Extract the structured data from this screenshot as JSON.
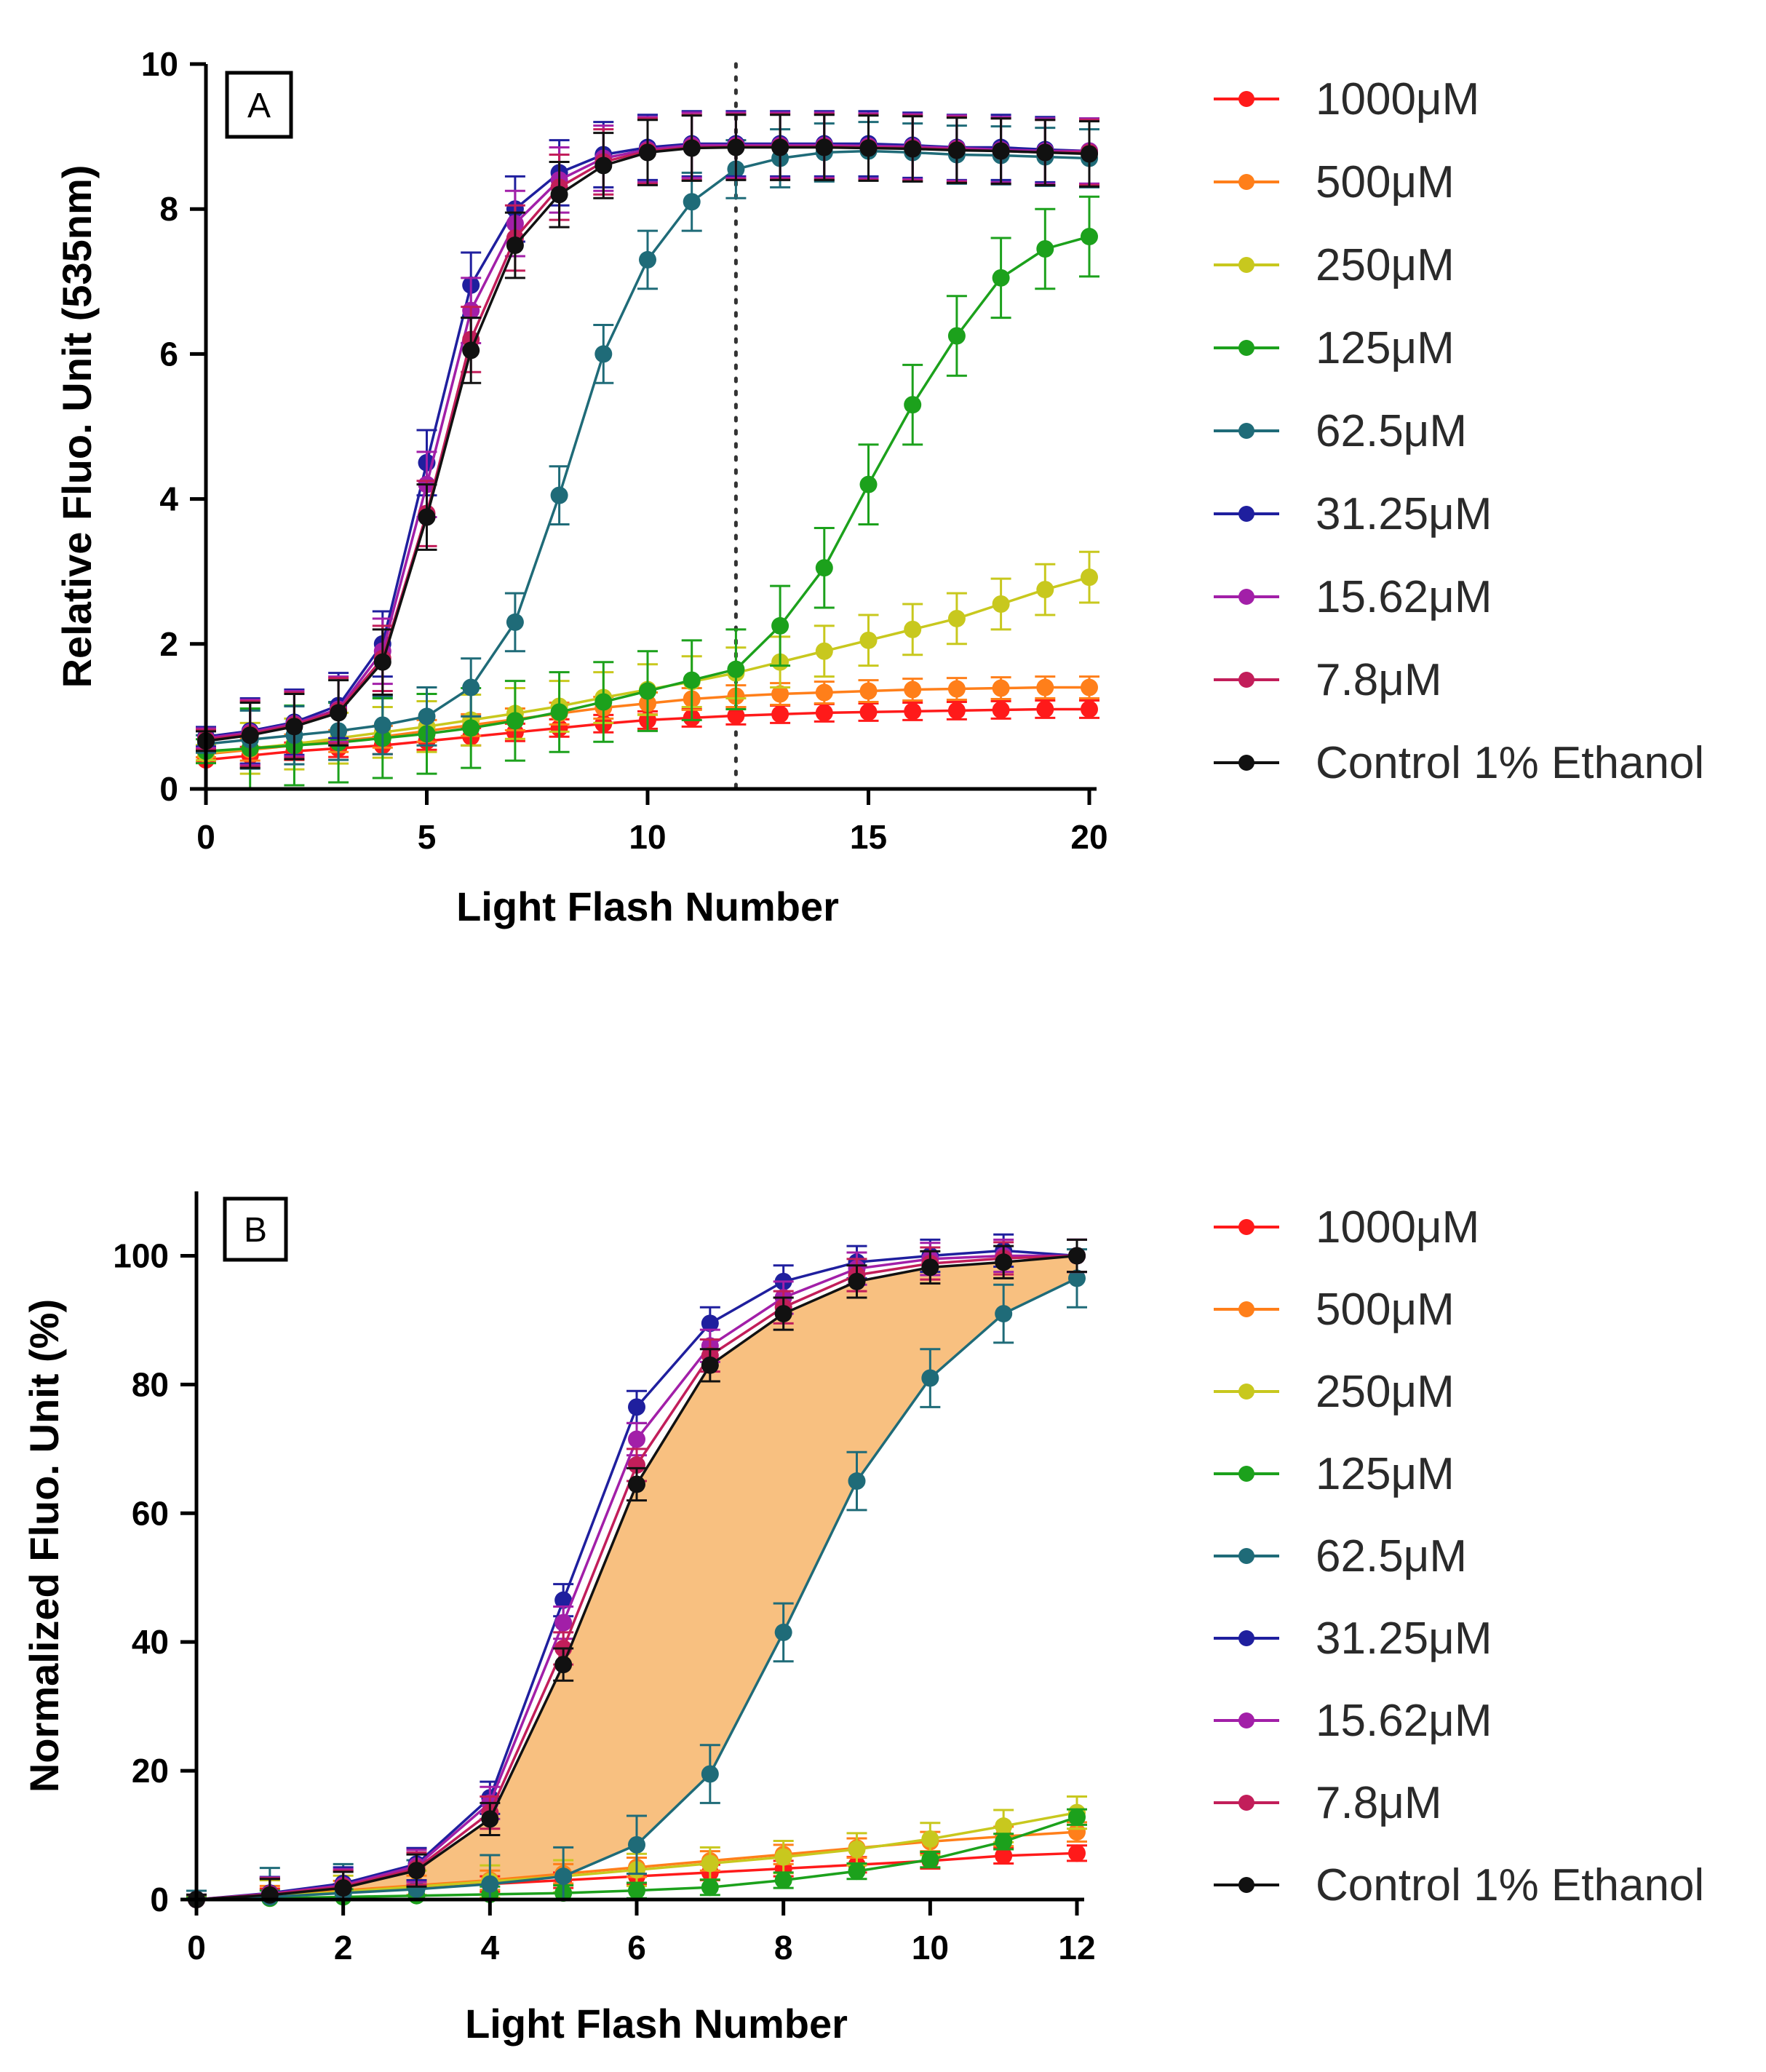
{
  "chart_data": [
    {
      "type": "line",
      "panel_label": "A",
      "xlabel": "Light Flash Number",
      "ylabel": "Relative Fluo. Unit (535nm)",
      "xlim": [
        0,
        20
      ],
      "ylim": [
        0,
        10
      ],
      "xticks": [
        0,
        5,
        10,
        15,
        20
      ],
      "yticks": [
        0,
        2,
        4,
        6,
        8,
        10
      ],
      "vline_x": 12,
      "vline_style": "dotted",
      "legend_position": "right",
      "x": [
        0,
        1,
        2,
        3,
        4,
        5,
        6,
        7,
        8,
        9,
        10,
        11,
        12,
        13,
        14,
        15,
        16,
        17,
        18,
        19,
        20
      ],
      "series": [
        {
          "name": "1000μM",
          "color": "#ff1a1a",
          "values": [
            0.4,
            0.46,
            0.52,
            0.56,
            0.6,
            0.66,
            0.72,
            0.78,
            0.84,
            0.9,
            0.95,
            0.98,
            1.01,
            1.03,
            1.05,
            1.06,
            1.07,
            1.08,
            1.09,
            1.1,
            1.1
          ],
          "err": 0.12
        },
        {
          "name": "500μM",
          "color": "#ff7f1a",
          "values": [
            0.48,
            0.54,
            0.6,
            0.66,
            0.72,
            0.8,
            0.88,
            0.96,
            1.04,
            1.12,
            1.18,
            1.24,
            1.28,
            1.31,
            1.33,
            1.35,
            1.37,
            1.38,
            1.39,
            1.4,
            1.4
          ],
          "err": 0.15
        },
        {
          "name": "250μM",
          "color": "#c8c81e",
          "values": [
            0.5,
            0.56,
            0.62,
            0.7,
            0.78,
            0.86,
            0.95,
            1.04,
            1.14,
            1.26,
            1.37,
            1.48,
            1.6,
            1.75,
            1.9,
            2.05,
            2.2,
            2.35,
            2.55,
            2.75,
            2.92
          ],
          "err": 0.35
        },
        {
          "name": "125μM",
          "color": "#1ca11c",
          "values": [
            0.52,
            0.56,
            0.6,
            0.64,
            0.7,
            0.76,
            0.84,
            0.94,
            1.06,
            1.2,
            1.35,
            1.5,
            1.65,
            2.25,
            3.05,
            4.2,
            5.3,
            6.25,
            7.05,
            7.45,
            7.62
          ],
          "err": 0.55
        },
        {
          "name": "62.5μM",
          "color": "#1f6b78",
          "values": [
            0.62,
            0.68,
            0.74,
            0.8,
            0.88,
            1.0,
            1.4,
            2.3,
            4.05,
            6.0,
            7.3,
            8.1,
            8.55,
            8.7,
            8.78,
            8.8,
            8.78,
            8.75,
            8.74,
            8.72,
            8.7
          ],
          "err": 0.4
        },
        {
          "name": "31.25μM",
          "color": "#1f1f9e",
          "values": [
            0.72,
            0.8,
            0.92,
            1.15,
            2.0,
            4.5,
            6.95,
            8.0,
            8.5,
            8.75,
            8.85,
            8.9,
            8.9,
            8.9,
            8.9,
            8.9,
            8.88,
            8.85,
            8.85,
            8.82,
            8.8
          ],
          "err": 0.45
        },
        {
          "name": "15.62μM",
          "color": "#a21fa8",
          "values": [
            0.7,
            0.78,
            0.9,
            1.1,
            1.9,
            4.2,
            6.6,
            7.8,
            8.4,
            8.7,
            8.82,
            8.88,
            8.88,
            8.88,
            8.88,
            8.87,
            8.86,
            8.84,
            8.82,
            8.8,
            8.8
          ],
          "err": 0.45
        },
        {
          "name": "7.8μM",
          "color": "#c21e5a",
          "values": [
            0.68,
            0.76,
            0.88,
            1.08,
            1.8,
            3.8,
            6.2,
            7.6,
            8.3,
            8.65,
            8.8,
            8.85,
            8.86,
            8.86,
            8.86,
            8.85,
            8.84,
            8.82,
            8.8,
            8.78,
            8.78
          ],
          "err": 0.45
        },
        {
          "name": "Control 1% Ethanol",
          "color": "#111111",
          "values": [
            0.66,
            0.74,
            0.86,
            1.05,
            1.75,
            3.75,
            6.05,
            7.5,
            8.2,
            8.6,
            8.78,
            8.84,
            8.85,
            8.85,
            8.85,
            8.84,
            8.83,
            8.81,
            8.8,
            8.78,
            8.76
          ],
          "err": 0.45
        }
      ]
    },
    {
      "type": "line",
      "panel_label": "B",
      "xlabel": "Light Flash Number",
      "ylabel": "Normalized Fluo. Unit (%)",
      "xlim": [
        0,
        12
      ],
      "ylim": [
        0,
        110
      ],
      "xticks": [
        0,
        2,
        4,
        6,
        8,
        10,
        12
      ],
      "yticks": [
        0,
        20,
        40,
        60,
        80,
        100
      ],
      "shaded_region": {
        "between": [
          "Control 1% Ethanol",
          "62.5μM"
        ],
        "color": "#f8c080"
      },
      "legend_position": "right",
      "x": [
        0,
        1,
        2,
        3,
        4,
        5,
        6,
        7,
        8,
        9,
        10,
        11,
        12
      ],
      "series": [
        {
          "name": "1000μM",
          "color": "#ff1a1a",
          "values": [
            0,
            0.5,
            1.2,
            1.8,
            2.4,
            3.0,
            3.6,
            4.2,
            4.8,
            5.4,
            6.0,
            6.8,
            7.2
          ],
          "err": 1.2
        },
        {
          "name": "500μM",
          "color": "#ff7f1a",
          "values": [
            0,
            0.6,
            1.4,
            2.2,
            3.0,
            4.0,
            5.0,
            6.0,
            7.0,
            8.0,
            9.0,
            9.8,
            10.5
          ],
          "err": 1.5
        },
        {
          "name": "250μM",
          "color": "#c8c81e",
          "values": [
            0,
            0.5,
            1.2,
            2.0,
            2.8,
            3.6,
            4.6,
            5.6,
            6.6,
            7.8,
            9.4,
            11.4,
            13.5
          ],
          "err": 2.5
        },
        {
          "name": "125μM",
          "color": "#1ca11c",
          "values": [
            0,
            0.2,
            0.4,
            0.6,
            0.8,
            1.0,
            1.4,
            1.9,
            3.0,
            4.4,
            6.2,
            9.0,
            12.8
          ],
          "err": 1.2
        },
        {
          "name": "62.5μM",
          "color": "#1f6b78",
          "values": [
            0,
            0.4,
            1.0,
            1.6,
            2.4,
            3.6,
            8.5,
            19.5,
            41.5,
            65.0,
            81.0,
            91.0,
            96.5
          ],
          "err": 4.5
        },
        {
          "name": "31.25μM",
          "color": "#1f1f9e",
          "values": [
            0,
            1.0,
            2.5,
            5.5,
            15.8,
            46.5,
            76.5,
            89.5,
            96.0,
            99.0,
            100.0,
            100.8,
            100.0
          ],
          "err": 2.5
        },
        {
          "name": "15.62μM",
          "color": "#a21fa8",
          "values": [
            0,
            0.9,
            2.2,
            5.2,
            15.0,
            43.0,
            71.5,
            86.0,
            93.5,
            98.0,
            99.5,
            100.0,
            100.0
          ],
          "err": 2.5
        },
        {
          "name": "7.8μM",
          "color": "#c21e5a",
          "values": [
            0,
            0.8,
            2.0,
            4.8,
            13.5,
            39.0,
            67.5,
            84.5,
            92.0,
            97.0,
            98.8,
            99.6,
            100.0
          ],
          "err": 2.5
        },
        {
          "name": "Control 1% Ethanol",
          "color": "#111111",
          "values": [
            0,
            0.7,
            1.8,
            4.5,
            12.5,
            36.5,
            64.5,
            83.0,
            91.0,
            96.0,
            98.2,
            99.0,
            100.0
          ],
          "err": 2.5
        }
      ]
    }
  ]
}
